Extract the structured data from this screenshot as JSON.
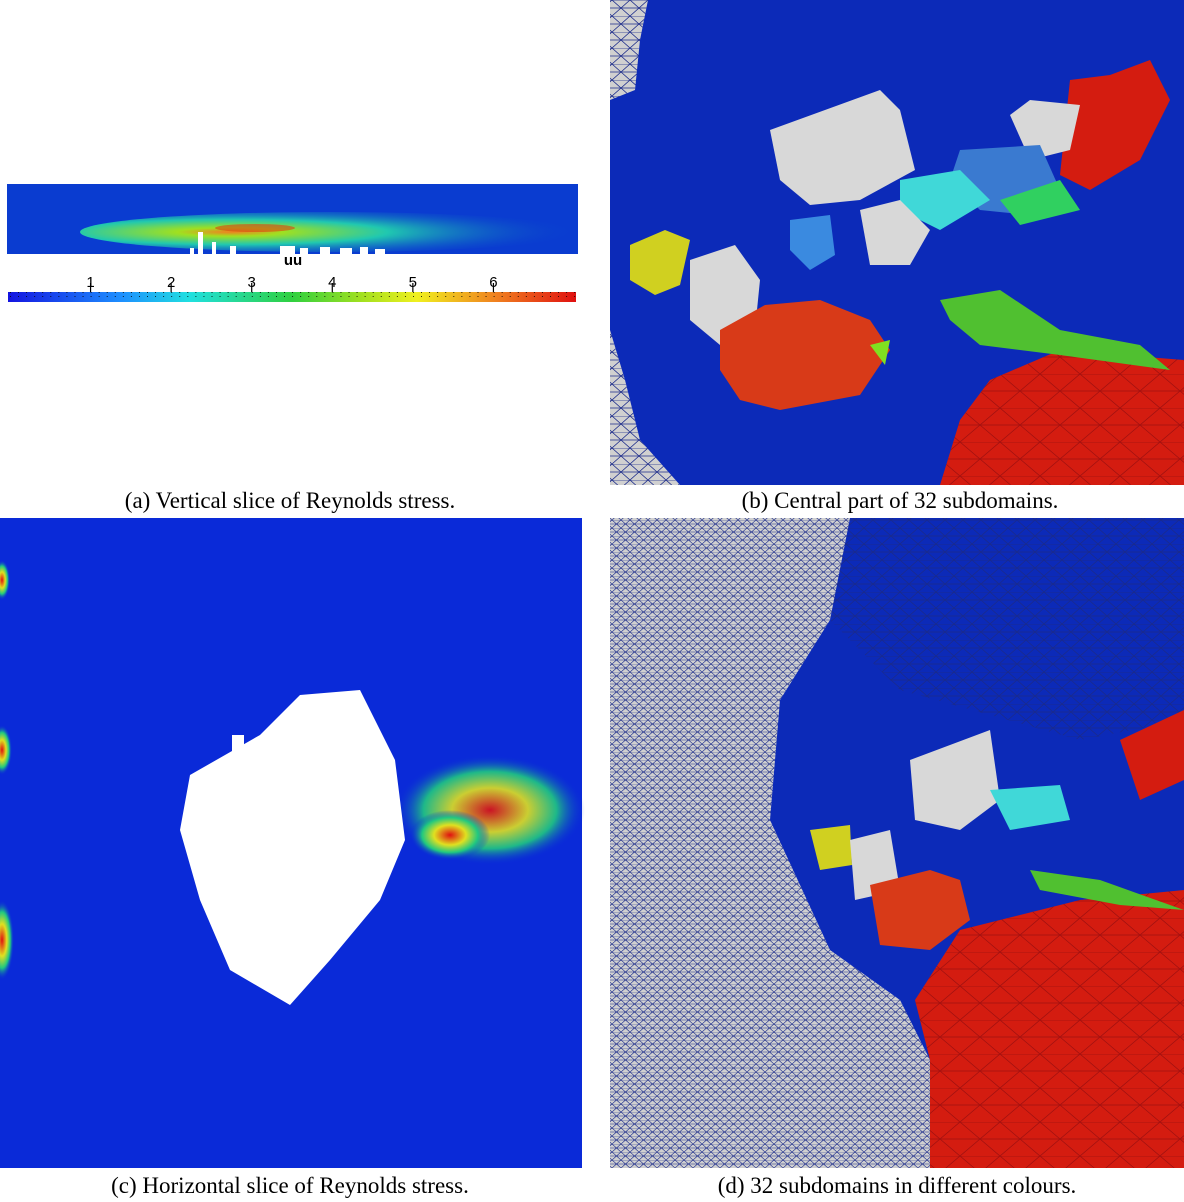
{
  "panels": [
    {
      "caption": "(a) Vertical slice of Reynolds stress."
    },
    {
      "caption": "(b) Central part of 32 subdomains."
    },
    {
      "caption": "(c) Horizontal slice of Reynolds stress."
    },
    {
      "caption": "(d) 32 subdomains in different colours."
    }
  ],
  "colorbar": {
    "title": "uu",
    "lim": [
      0,
      7
    ],
    "ticks": [
      1,
      2,
      3,
      4,
      5,
      6
    ]
  }
}
